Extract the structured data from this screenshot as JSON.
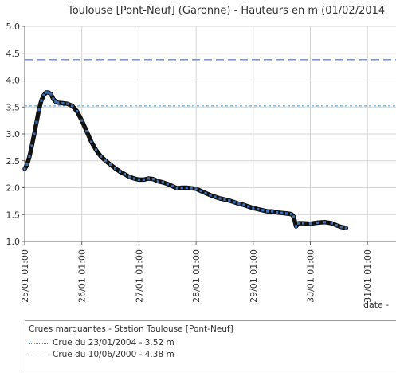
{
  "chart_data": {
    "type": "line",
    "title": "Toulouse [Pont-Neuf] (Garonne) - Hauteurs en m (01/02/2014",
    "xlabel": "date",
    "ylabel": "",
    "ylim": [
      1.0,
      5.0
    ],
    "y_ticks": [
      "5.0",
      "4.5",
      "4.0",
      "3.5",
      "3.0",
      "2.5",
      "2.0",
      "1.5",
      "1.0"
    ],
    "x_ticks": [
      "25/01 01:00",
      "26/01 01:00",
      "27/01 01:00",
      "28/01 01:00",
      "29/01 01:00",
      "30/01 01:00",
      "31/01 01:00"
    ],
    "grid": true,
    "series": [
      {
        "values_hours_from_25_01_01h": [
          [
            0,
            2.35
          ],
          [
            1,
            2.43
          ],
          [
            2,
            2.58
          ],
          [
            3,
            2.78
          ],
          [
            4,
            3.0
          ],
          [
            5,
            3.22
          ],
          [
            6,
            3.45
          ],
          [
            7,
            3.62
          ],
          [
            8,
            3.72
          ],
          [
            9,
            3.77
          ],
          [
            10,
            3.77
          ],
          [
            11,
            3.74
          ],
          [
            12,
            3.65
          ],
          [
            13,
            3.6
          ],
          [
            14,
            3.58
          ],
          [
            16,
            3.57
          ],
          [
            18,
            3.56
          ],
          [
            20,
            3.52
          ],
          [
            22,
            3.42
          ],
          [
            24,
            3.25
          ],
          [
            26,
            3.05
          ],
          [
            28,
            2.85
          ],
          [
            30,
            2.7
          ],
          [
            32,
            2.58
          ],
          [
            34,
            2.5
          ],
          [
            36,
            2.43
          ],
          [
            38,
            2.36
          ],
          [
            40,
            2.3
          ],
          [
            42,
            2.25
          ],
          [
            44,
            2.2
          ],
          [
            46,
            2.17
          ],
          [
            48,
            2.15
          ],
          [
            50,
            2.15
          ],
          [
            52,
            2.17
          ],
          [
            54,
            2.16
          ],
          [
            56,
            2.12
          ],
          [
            58,
            2.1
          ],
          [
            60,
            2.07
          ],
          [
            62,
            2.03
          ],
          [
            64,
            1.99
          ],
          [
            66,
            2.0
          ],
          [
            68,
            2.0
          ],
          [
            70,
            1.99
          ],
          [
            72,
            1.98
          ],
          [
            74,
            1.94
          ],
          [
            76,
            1.9
          ],
          [
            78,
            1.86
          ],
          [
            80,
            1.83
          ],
          [
            82,
            1.8
          ],
          [
            84,
            1.78
          ],
          [
            86,
            1.76
          ],
          [
            88,
            1.73
          ],
          [
            90,
            1.7
          ],
          [
            92,
            1.68
          ],
          [
            94,
            1.65
          ],
          [
            96,
            1.62
          ],
          [
            98,
            1.6
          ],
          [
            100,
            1.58
          ],
          [
            102,
            1.56
          ],
          [
            104,
            1.56
          ],
          [
            106,
            1.54
          ],
          [
            108,
            1.53
          ],
          [
            110,
            1.52
          ],
          [
            112,
            1.51
          ],
          [
            113,
            1.46
          ],
          [
            114,
            1.28
          ],
          [
            115,
            1.34
          ],
          [
            117,
            1.34
          ],
          [
            120,
            1.33
          ],
          [
            123,
            1.35
          ],
          [
            126,
            1.36
          ],
          [
            129,
            1.34
          ],
          [
            131,
            1.3
          ],
          [
            133,
            1.27
          ],
          [
            135,
            1.25
          ]
        ]
      }
    ],
    "thresholds": [
      {
        "label": "Crue du 23/01/2004 - 3.52 m",
        "value": 3.52,
        "style": "dotted",
        "color": "#3aa0d8"
      },
      {
        "label": "Crue du 10/06/2000 - 4.38 m",
        "value": 4.38,
        "style": "dashed",
        "color": "#3a5aa8"
      }
    ],
    "legend": {
      "title": "Crues marquantes - Station Toulouse [Pont-Neuf]",
      "placement": "bottom"
    }
  }
}
